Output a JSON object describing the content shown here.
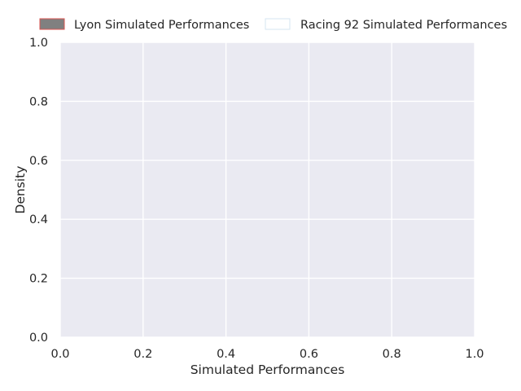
{
  "chart_data": {
    "type": "area",
    "title": "",
    "xlabel": "Simulated Performances",
    "ylabel": "Density",
    "xlim": [
      0.0,
      1.0
    ],
    "ylim": [
      0.0,
      1.0
    ],
    "xticks": [
      "0.0",
      "0.2",
      "0.4",
      "0.6",
      "0.8",
      "1.0"
    ],
    "yticks": [
      "0.0",
      "0.2",
      "0.4",
      "0.6",
      "0.8",
      "1.0"
    ],
    "grid": true,
    "legend_position": "top, above plot, horizontal",
    "plot_background": "#eaeaf2",
    "grid_color": "#ffffff",
    "series": [
      {
        "name": "Lyon Simulated Performances",
        "fill_color": "#808080",
        "edge_color": "#d9534f",
        "values": []
      },
      {
        "name": "Racing 92 Simulated Performances",
        "fill_color": "#ffffff",
        "edge_color": "#d6e6f2",
        "values": []
      }
    ]
  }
}
